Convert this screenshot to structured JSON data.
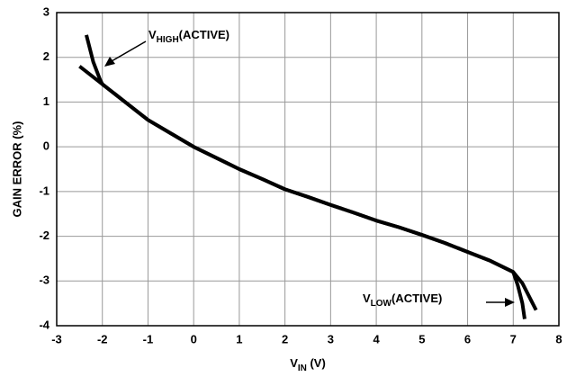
{
  "chart_data": {
    "type": "line",
    "ylabel": "GAIN ERROR (%)",
    "xlabel": {
      "main": "V",
      "sub": "IN",
      "rest": " (V)"
    },
    "annotations": [
      {
        "main": "V",
        "sub": "HIGH",
        "rest": "(ACTIVE)"
      },
      {
        "main": "V",
        "sub": "LOW",
        "rest": "(ACTIVE)"
      }
    ],
    "xlim": [
      -3,
      8
    ],
    "xticks": [
      -3,
      -2,
      -1,
      0,
      1,
      2,
      3,
      4,
      5,
      6,
      7,
      8
    ],
    "ylim": [
      -4,
      3
    ],
    "yticks": [
      -4,
      -3,
      -2,
      -1,
      0,
      1,
      2,
      3
    ],
    "grid": true,
    "series": [
      {
        "color": "#000000",
        "x": [
          -2.5,
          -2,
          -1.5,
          -1,
          -0.5,
          0,
          0.5,
          1,
          1.5,
          2,
          2.5,
          3,
          3.5,
          4,
          4.5,
          5,
          5.5,
          6,
          6.5,
          7,
          7.2,
          7.4,
          7.5
        ],
        "values": [
          1.8,
          1.4,
          1.0,
          0.6,
          0.3,
          0,
          -0.25,
          -0.5,
          -0.72,
          -0.95,
          -1.12,
          -1.3,
          -1.47,
          -1.65,
          -1.8,
          -1.97,
          -2.15,
          -2.35,
          -2.55,
          -2.8,
          -3.05,
          -3.45,
          -3.65
        ]
      },
      {
        "color": "#000000",
        "x": [
          -2.35,
          -2.2,
          -2.05,
          -2,
          -1.5,
          -1,
          -0.5,
          0,
          0.5,
          1,
          1.5,
          2,
          2.5,
          3,
          3.5,
          4,
          4.5,
          5,
          5.5,
          6,
          6.5,
          7,
          7.1,
          7.2,
          7.25
        ],
        "values": [
          2.5,
          1.9,
          1.5,
          1.4,
          1.0,
          0.6,
          0.3,
          0,
          -0.25,
          -0.5,
          -0.72,
          -0.95,
          -1.12,
          -1.3,
          -1.47,
          -1.65,
          -1.8,
          -1.97,
          -2.15,
          -2.35,
          -2.55,
          -2.8,
          -3.1,
          -3.5,
          -3.85
        ]
      }
    ]
  }
}
